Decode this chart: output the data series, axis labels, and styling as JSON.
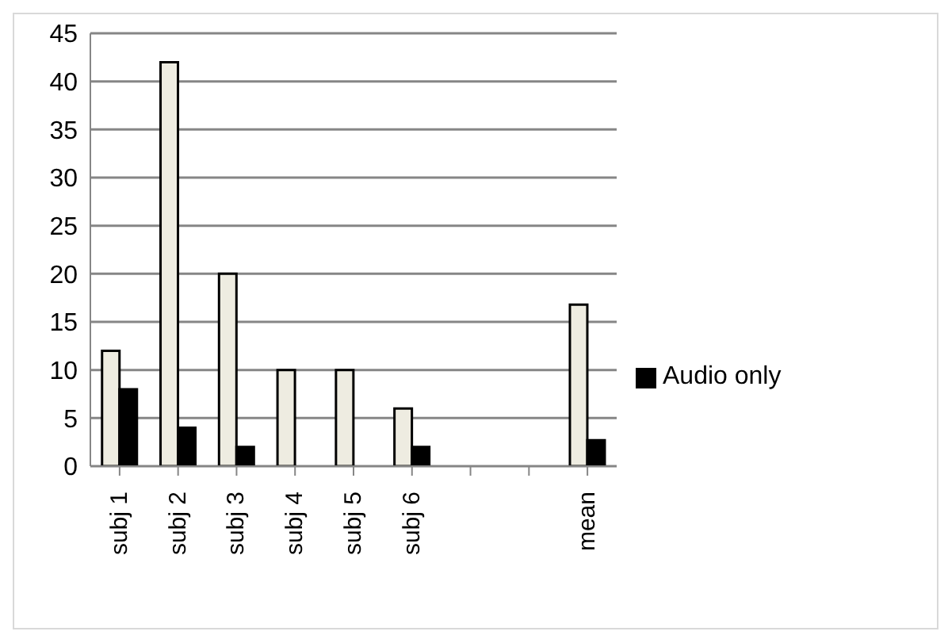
{
  "chart_data": {
    "type": "bar",
    "categories": [
      "subj 1",
      "subj 2",
      "subj 3",
      "subj 4",
      "subj 5",
      "subj 6",
      null,
      null,
      "mean"
    ],
    "series": [
      {
        "color": "#eeece1",
        "values": [
          12,
          42,
          20,
          10,
          10,
          6,
          null,
          null,
          16.8
        ]
      },
      {
        "name": "Audio only",
        "color": "#000000",
        "values": [
          8,
          4,
          2,
          0,
          0,
          2,
          null,
          null,
          2.7
        ]
      }
    ],
    "ylim": [
      0,
      45
    ],
    "yticks": [
      0,
      5,
      10,
      15,
      20,
      25,
      30,
      35,
      40,
      45
    ],
    "grid": "y",
    "legend": "right"
  }
}
